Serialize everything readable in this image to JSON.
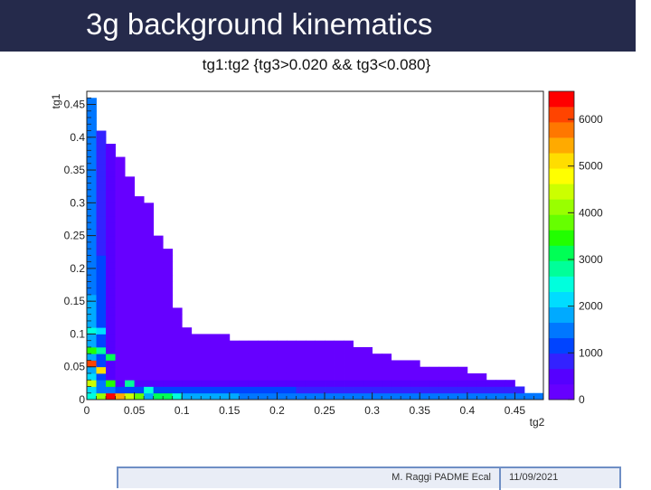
{
  "slide": {
    "title": "3g background kinematics",
    "footer_author": "M. Raggi PADME Ecal",
    "footer_date": "11/09/2021",
    "header_color": "#252a4b"
  },
  "chart_data": {
    "type": "heatmap",
    "title": "tg1:tg2 {tg3>0.020 && tg3<0.080}",
    "xlabel": "tg2",
    "ylabel": "tg1",
    "xlim": [
      0,
      0.48
    ],
    "ylim": [
      0,
      0.47
    ],
    "x_ticks": [
      "0",
      "0.05",
      "0.1",
      "0.15",
      "0.2",
      "0.25",
      "0.3",
      "0.35",
      "0.4",
      "0.45"
    ],
    "x_tick_values": [
      0,
      0.05,
      0.1,
      0.15,
      0.2,
      0.25,
      0.3,
      0.35,
      0.4,
      0.45
    ],
    "y_ticks": [
      "0",
      "0.05",
      "0.1",
      "0.15",
      "0.2",
      "0.25",
      "0.3",
      "0.35",
      "0.4",
      "0.45"
    ],
    "y_tick_values": [
      0,
      0.05,
      0.1,
      0.15,
      0.2,
      0.25,
      0.3,
      0.35,
      0.4,
      0.45
    ],
    "z_range": [
      0,
      6600
    ],
    "z_ticks": [
      "0",
      "1000",
      "2000",
      "3000",
      "4000",
      "5000",
      "6000"
    ],
    "z_tick_values": [
      0,
      1000,
      2000,
      3000,
      4000,
      5000,
      6000
    ],
    "bin_width": 0.01,
    "bins_x_count": 48,
    "bins_y_count": 47,
    "colormap": [
      "#6600ff",
      "#5500ff",
      "#3322ff",
      "#0044ff",
      "#0077ff",
      "#00aaff",
      "#00ddff",
      "#00ffdd",
      "#00ff99",
      "#00ff55",
      "#22ff00",
      "#66ff00",
      "#99ff00",
      "#ccff00",
      "#ffff00",
      "#ffdd00",
      "#ffaa00",
      "#ff7700",
      "#ff4400",
      "#ff0000"
    ],
    "region_upper_edge": [
      [
        0,
        0.45
      ],
      [
        0.01,
        0.4
      ],
      [
        0.02,
        0.38
      ],
      [
        0.03,
        0.36
      ],
      [
        0.04,
        0.33
      ],
      [
        0.05,
        0.3
      ],
      [
        0.06,
        0.29
      ],
      [
        0.07,
        0.24
      ],
      [
        0.08,
        0.22
      ],
      [
        0.09,
        0.13
      ],
      [
        0.1,
        0.1
      ],
      [
        0.11,
        0.09
      ],
      [
        0.14,
        0.09
      ],
      [
        0.15,
        0.08
      ],
      [
        0.25,
        0.08
      ],
      [
        0.28,
        0.07
      ],
      [
        0.3,
        0.06
      ],
      [
        0.32,
        0.05
      ],
      [
        0.35,
        0.04
      ],
      [
        0.37,
        0.04
      ],
      [
        0.4,
        0.03
      ],
      [
        0.42,
        0.02
      ],
      [
        0.45,
        0.01
      ],
      [
        0.46,
        0
      ]
    ],
    "hot_core": [
      [
        0,
        0.05,
        6200
      ],
      [
        0.01,
        0.04,
        5200
      ],
      [
        0.02,
        0.0,
        6500
      ],
      [
        0.0,
        0.02,
        4500
      ],
      [
        0.01,
        0.0,
        4000
      ],
      [
        0.03,
        0.0,
        5600
      ],
      [
        0.04,
        0.0,
        4600
      ],
      [
        0.05,
        0.0,
        3800
      ],
      [
        0.0,
        0.07,
        3400
      ],
      [
        0.01,
        0.07,
        2800
      ],
      [
        0.02,
        0.06,
        3000
      ],
      [
        0.06,
        0.01,
        2600
      ],
      [
        0.07,
        0.0,
        3200
      ],
      [
        0.08,
        0.0,
        3000
      ],
      [
        0.0,
        0.1,
        2400
      ],
      [
        0.01,
        0.1,
        2000
      ],
      [
        0.02,
        0.02,
        3600
      ],
      [
        0.04,
        0.02,
        2800
      ],
      [
        0.09,
        0.0,
        2400
      ]
    ]
  }
}
